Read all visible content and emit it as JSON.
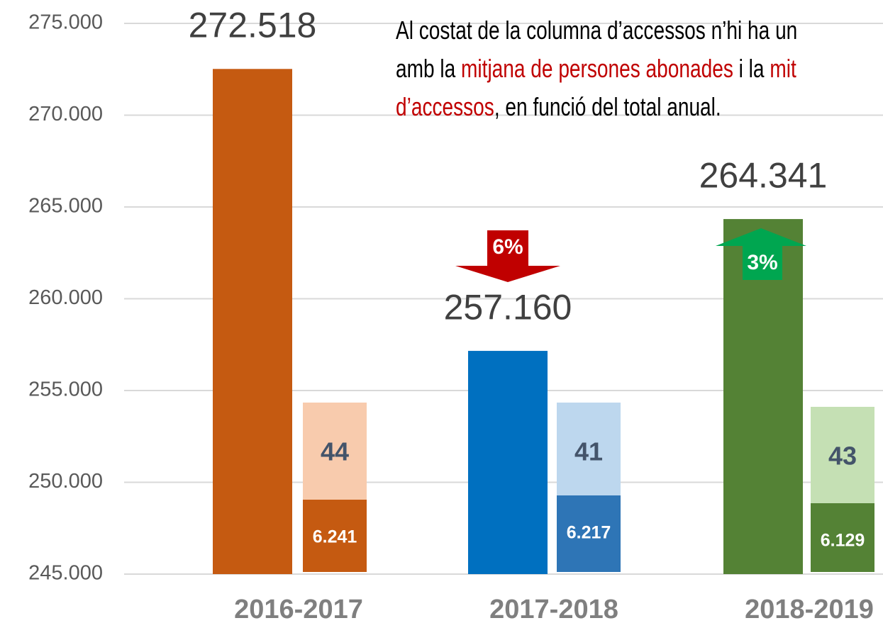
{
  "chart_data": {
    "type": "bar",
    "annotation": [
      [
        {
          "text": "Al costat de la columna d’accessos n’hi ha un"
        }
      ],
      [
        {
          "text": "amb la "
        },
        {
          "text": "mitjana de persones abonades",
          "highlight": true
        },
        {
          "text": " i la "
        },
        {
          "text": "mit",
          "highlight": true
        }
      ],
      [
        {
          "text": "d’accessos",
          "highlight": true
        },
        {
          "text": ", en funció del total anual."
        }
      ]
    ],
    "categories": [
      "2016-2017",
      "2017-2018",
      "2018-2019"
    ],
    "values": [
      272518,
      257160,
      264341
    ],
    "value_labels": [
      "272.518",
      "257.160",
      "264.341"
    ],
    "colors": [
      "#c55a11",
      "#0070c0",
      "#548235"
    ],
    "changes": [
      null,
      {
        "value": 6,
        "label": "6%",
        "direction": "down",
        "color": "#c00000"
      },
      {
        "value": 3,
        "label": "3%",
        "direction": "up",
        "color": "#00a650"
      }
    ],
    "side_top": {
      "values": [
        44,
        41,
        43
      ],
      "colors": [
        "#f8cbad",
        "#bdd7ee",
        "#c5e0b4"
      ]
    },
    "side_bottom": {
      "values": [
        6241,
        6217,
        6129
      ],
      "value_labels": [
        "6.241",
        "6.217",
        "6.129"
      ],
      "colors": [
        "#c55a11",
        "#2e75b6",
        "#548235"
      ]
    },
    "ylim": [
      245000,
      275000
    ],
    "yticks": [
      {
        "value": 245000,
        "label": "245.000"
      },
      {
        "value": 250000,
        "label": "250.000"
      },
      {
        "value": 255000,
        "label": "255.000"
      },
      {
        "value": 260000,
        "label": "260.000"
      },
      {
        "value": 265000,
        "label": "265.000"
      },
      {
        "value": 270000,
        "label": "270.000"
      },
      {
        "value": 275000,
        "label": "275.000"
      }
    ],
    "grid": true
  }
}
